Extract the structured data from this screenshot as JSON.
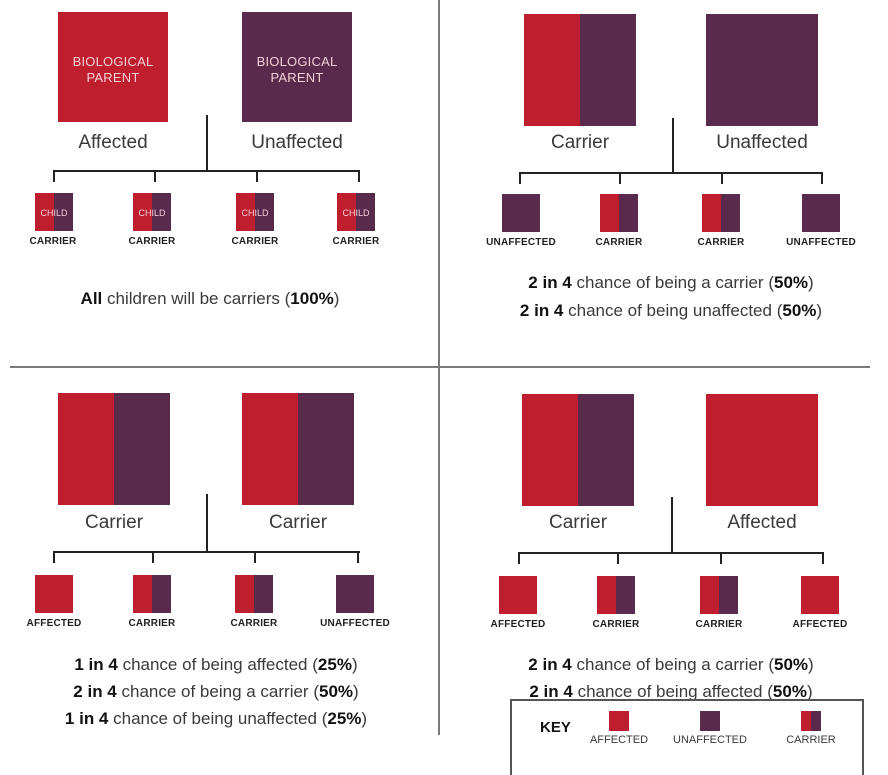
{
  "q1": {
    "parent_inner_left": "BIOLOGICAL\nPARENT",
    "parent_inner_right": "BIOLOGICAL\nPARENT",
    "parent_left_label": "Affected",
    "parent_right_label": "Unaffected",
    "child_inner": "CHILD",
    "children": [
      "CARRIER",
      "CARRIER",
      "CARRIER",
      "CARRIER"
    ],
    "stat": {
      "bold1": "All",
      "text": " children will be carriers (",
      "bold2": "100%",
      "end": ")"
    }
  },
  "q2": {
    "parent_left_label": "Carrier",
    "parent_right_label": "Unaffected",
    "children": [
      "UNAFFECTED",
      "CARRIER",
      "CARRIER",
      "UNAFFECTED"
    ],
    "stats": [
      {
        "bold1": "2 in 4",
        "text": " chance of being a carrier (",
        "bold2": "50%",
        "end": ")"
      },
      {
        "bold1": "2 in 4",
        "text": " chance of being unaffected (",
        "bold2": "50%",
        "end": ")"
      }
    ]
  },
  "q3": {
    "parent_left_label": "Carrier",
    "parent_right_label": "Carrier",
    "children": [
      "AFFECTED",
      "CARRIER",
      "CARRIER",
      "UNAFFECTED"
    ],
    "stats": [
      {
        "bold1": "1 in 4",
        "text": " chance of being affected (",
        "bold2": "25%",
        "end": ")"
      },
      {
        "bold1": "2 in 4",
        "text": " chance of being a carrier (",
        "bold2": "50%",
        "end": ")"
      },
      {
        "bold1": "1 in 4",
        "text": " chance of being unaffected (",
        "bold2": "25%",
        "end": ")"
      }
    ]
  },
  "q4": {
    "parent_left_label": "Carrier",
    "parent_right_label": "Affected",
    "children": [
      "AFFECTED",
      "CARRIER",
      "CARRIER",
      "AFFECTED"
    ],
    "stats": [
      {
        "bold1": "2 in 4",
        "text": " chance of being a carrier (",
        "bold2": "50%",
        "end": ")"
      },
      {
        "bold1": "2 in 4",
        "text": " chance of being affected (",
        "bold2": "50%",
        "end": ")"
      }
    ]
  },
  "key": {
    "title": "KEY",
    "affected": "AFFECTED",
    "unaffected": "UNAFFECTED",
    "carrier": "CARRIER"
  },
  "colors": {
    "affected": "#be1e2d",
    "unaffected": "#5a2a4c"
  }
}
